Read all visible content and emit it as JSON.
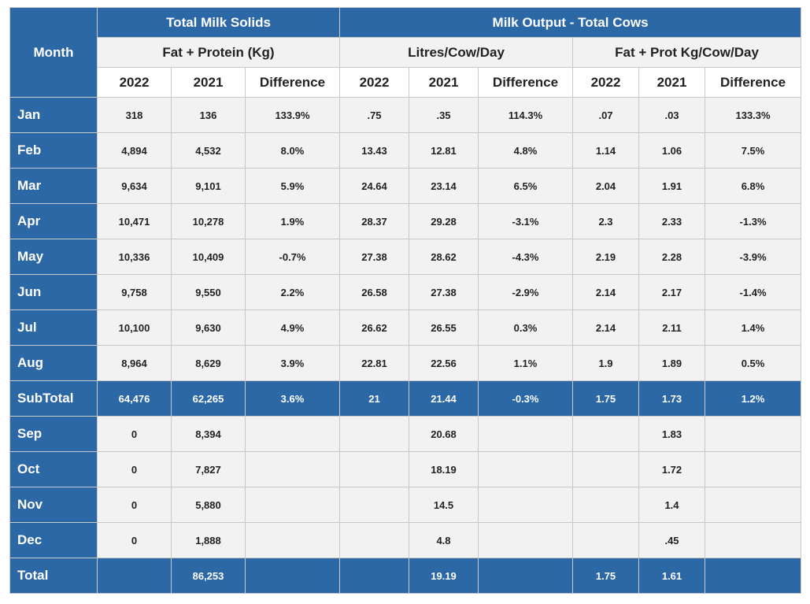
{
  "headers": {
    "month": "Month",
    "group1": "Total Milk Solids",
    "group2": "Milk Output - Total Cows",
    "sub1": "Fat + Protein (Kg)",
    "sub2": "Litres/Cow/Day",
    "sub3": "Fat + Prot Kg/Cow/Day",
    "y2022": "2022",
    "y2021": "2021",
    "diff": "Difference"
  },
  "rows": [
    {
      "m": "Jan",
      "v": [
        "318",
        "136",
        "133.9%",
        ".75",
        ".35",
        "114.3%",
        ".07",
        ".03",
        "133.3%"
      ]
    },
    {
      "m": "Feb",
      "v": [
        "4,894",
        "4,532",
        "8.0%",
        "13.43",
        "12.81",
        "4.8%",
        "1.14",
        "1.06",
        "7.5%"
      ]
    },
    {
      "m": "Mar",
      "v": [
        "9,634",
        "9,101",
        "5.9%",
        "24.64",
        "23.14",
        "6.5%",
        "2.04",
        "1.91",
        "6.8%"
      ]
    },
    {
      "m": "Apr",
      "v": [
        "10,471",
        "10,278",
        "1.9%",
        "28.37",
        "29.28",
        "-3.1%",
        "2.3",
        "2.33",
        "-1.3%"
      ]
    },
    {
      "m": "May",
      "v": [
        "10,336",
        "10,409",
        "-0.7%",
        "27.38",
        "28.62",
        "-4.3%",
        "2.19",
        "2.28",
        "-3.9%"
      ]
    },
    {
      "m": "Jun",
      "v": [
        "9,758",
        "9,550",
        "2.2%",
        "26.58",
        "27.38",
        "-2.9%",
        "2.14",
        "2.17",
        "-1.4%"
      ]
    },
    {
      "m": "Jul",
      "v": [
        "10,100",
        "9,630",
        "4.9%",
        "26.62",
        "26.55",
        "0.3%",
        "2.14",
        "2.11",
        "1.4%"
      ]
    },
    {
      "m": "Aug",
      "v": [
        "8,964",
        "8,629",
        "3.9%",
        "22.81",
        "22.56",
        "1.1%",
        "1.9",
        "1.89",
        "0.5%"
      ]
    }
  ],
  "subtotal": {
    "m": "SubTotal",
    "v": [
      "64,476",
      "62,265",
      "3.6%",
      "21",
      "21.44",
      "-0.3%",
      "1.75",
      "1.73",
      "1.2%"
    ]
  },
  "late_rows": [
    {
      "m": "Sep",
      "v": [
        "0",
        "8,394",
        "",
        "",
        "20.68",
        "",
        "",
        "1.83",
        ""
      ]
    },
    {
      "m": "Oct",
      "v": [
        "0",
        "7,827",
        "",
        "",
        "18.19",
        "",
        "",
        "1.72",
        ""
      ]
    },
    {
      "m": "Nov",
      "v": [
        "0",
        "5,880",
        "",
        "",
        "14.5",
        "",
        "",
        "1.4",
        ""
      ]
    },
    {
      "m": "Dec",
      "v": [
        "0",
        "1,888",
        "",
        "",
        "4.8",
        "",
        "",
        ".45",
        ""
      ]
    }
  ],
  "total": {
    "m": "Total",
    "v": [
      "",
      "86,253",
      "",
      "",
      "19.19",
      "",
      "1.75",
      "1.61",
      ""
    ]
  },
  "colors": {
    "header_blue": "#2c67a6",
    "row_grey": "#f2f2f2",
    "border": "#c9c9c9"
  }
}
